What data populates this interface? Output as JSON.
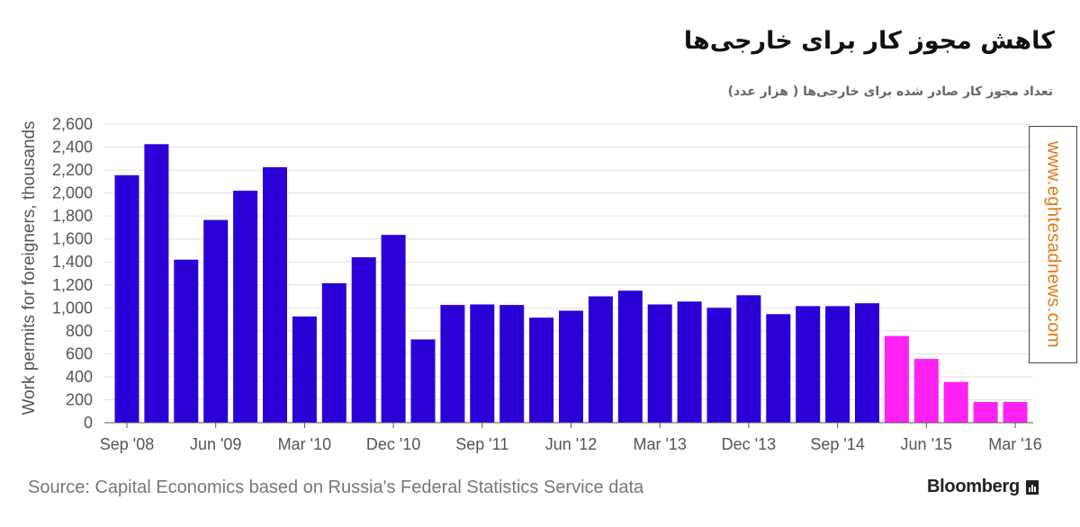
{
  "header": {
    "title": "کاهش مجوز کار برای خارجی‌ها",
    "subtitle": "تعداد مجوز کار صادر شده برای خارجی‌ها ( هزار عدد)"
  },
  "watermark": {
    "text": "www.eghtesadnews.com"
  },
  "footer": {
    "source": "Source: Capital Economics based on Russia's Federal Statistics Service data",
    "brand": "Bloomberg"
  },
  "colors": {
    "actual": "#2b00d6",
    "forecast": "#ff22f2",
    "grid": "#e2e2e2",
    "axis": "#555555",
    "watermark": "#e07a10"
  },
  "chart_data": {
    "type": "bar",
    "ylabel": "Work permits for foreigners, thousands",
    "ylim": [
      0,
      2600
    ],
    "yticks": [
      0,
      200,
      400,
      600,
      800,
      1000,
      1200,
      1400,
      1600,
      1800,
      2000,
      2200,
      2400,
      2600
    ],
    "xtick_labels": [
      "Sep '08",
      "Jun '09",
      "Mar '10",
      "Dec '10",
      "Sep '11",
      "Jun '12",
      "Mar '13",
      "Dec '13",
      "Sep '14",
      "Jun '15",
      "Mar '16"
    ],
    "grid": true,
    "series": [
      {
        "values": [
          2155,
          2425,
          1420,
          1765,
          2020,
          2225,
          925,
          1215,
          1440,
          1635,
          725,
          1025,
          1030,
          1025,
          915,
          975,
          1100,
          1150,
          1030,
          1055,
          1000,
          1110,
          945,
          1015,
          1015,
          1040
        ]
      },
      {
        "values": [
          755,
          555,
          355,
          180,
          180
        ]
      }
    ]
  }
}
